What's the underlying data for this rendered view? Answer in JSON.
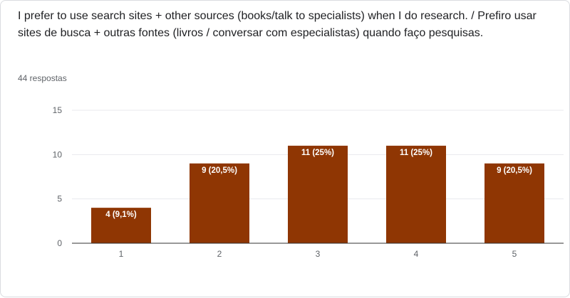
{
  "question": "I prefer to use search sites + other sources (books/talk to specialists) when I do research. / Prefiro usar sites de busca + outras fontes (livros / conversar com especialistas) quando faço pesquisas.",
  "response_count": "44 respostas",
  "colors": {
    "bar": "#8f3603",
    "grid": "#e8eaed",
    "axis": "#333333"
  },
  "chart_data": {
    "type": "bar",
    "categories": [
      "1",
      "2",
      "3",
      "4",
      "5"
    ],
    "values": [
      4,
      9,
      11,
      11,
      9
    ],
    "data_labels": [
      "4 (9,1%)",
      "9 (20,5%)",
      "11 (25%)",
      "11 (25%)",
      "9 (20,5%)"
    ],
    "yticks": [
      "0",
      "5",
      "10",
      "15"
    ],
    "ylim": [
      0,
      15
    ],
    "grid": true,
    "legend": "none"
  }
}
